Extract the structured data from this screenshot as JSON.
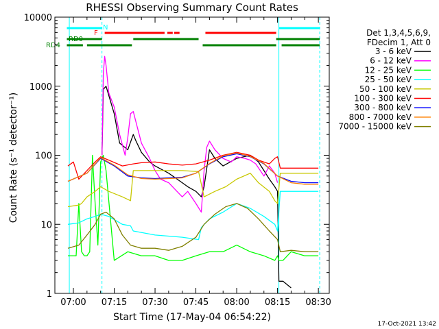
{
  "chart_data": {
    "type": "line",
    "title": "RHESSI Observing Summary Count Rates",
    "xlabel": "Start Time (17-May-04 06:54:22)",
    "ylabel": "Count Rate (s⁻¹ detector⁻¹)",
    "y_scale": "log",
    "ylim": [
      1,
      10000
    ],
    "xlim_minutes": [
      -2.4,
      37.3
    ],
    "x_ticks": [
      "07:00",
      "07:15",
      "07:30",
      "07:45",
      "08:00",
      "08:15",
      "08:30"
    ],
    "x_tick_minutes": [
      0,
      15,
      30,
      45,
      60,
      75,
      90
    ],
    "y_ticks": [
      "1",
      "10",
      "100",
      "1000",
      "10000"
    ],
    "y_tick_values": [
      1,
      10,
      100,
      1000,
      10000
    ],
    "legend_header": [
      "Det 1,3,4,5,6,9,",
      "FDecim 1, Att 0"
    ],
    "legend_position": "right",
    "footer": "17-Oct-2021 13:42",
    "flag_labels": {
      "N": "N",
      "F": "F",
      "RD0": "RD0",
      "RD4": "RD4"
    },
    "flag_bars": [
      {
        "name": "N",
        "color": "#00ffff",
        "row": 0,
        "segments": [
          [
            -2.4,
            10.5
          ],
          [
            75.5,
            90.5
          ]
        ]
      },
      {
        "name": "F",
        "color": "#ff0000",
        "row": 1,
        "segments": [
          [
            11.5,
            33.5
          ],
          [
            34.5,
            36.5
          ],
          [
            37.0,
            39.0
          ],
          [
            48.5,
            74.5
          ]
        ]
      },
      {
        "name": "RD0",
        "color": "#008000",
        "row": 2,
        "segments": [
          [
            -2.4,
            10.5
          ],
          [
            22.0,
            46.0
          ],
          [
            74.5,
            90.5
          ]
        ]
      },
      {
        "name": "RD4",
        "color": "#008000",
        "row": 3,
        "segments": [
          [
            -2.4,
            3.5
          ],
          [
            5.0,
            21.5
          ],
          [
            47.5,
            74.5
          ],
          [
            76.5,
            90.5
          ]
        ]
      }
    ],
    "vlines": [
      {
        "x": -1.5,
        "color": "#00ffff",
        "style": "solid"
      },
      {
        "x": 10.5,
        "color": "#00ffff",
        "style": "dashed"
      },
      {
        "x": 75.5,
        "color": "#00ffff",
        "style": "solid"
      },
      {
        "x": 90.5,
        "color": "#00ffff",
        "style": "dashed"
      }
    ],
    "series": [
      {
        "name": "3 - 6 keV",
        "color": "#000000",
        "x": [
          -2,
          8,
          10,
          10.5,
          11,
          12,
          15,
          17,
          20,
          22,
          23,
          25,
          28,
          30,
          35,
          40,
          42,
          45,
          47,
          48,
          50,
          52,
          55,
          60,
          65,
          68,
          70,
          72,
          74,
          75,
          75.5,
          77,
          80,
          85,
          90
        ],
        "y": [
          null,
          null,
          null,
          100,
          900,
          1000,
          400,
          150,
          120,
          200,
          160,
          110,
          80,
          70,
          55,
          40,
          35,
          30,
          25,
          35,
          120,
          90,
          70,
          90,
          100,
          80,
          60,
          45,
          35,
          30,
          1.5,
          1.5,
          1.2,
          null,
          null
        ]
      },
      {
        "name": "6 - 12 keV",
        "color": "#ff00ff",
        "x": [
          -2,
          10.5,
          11,
          11.5,
          12,
          13,
          15,
          17,
          19,
          20,
          21,
          22,
          23,
          25,
          28,
          30,
          32,
          35,
          40,
          42,
          45,
          47,
          48,
          49,
          50,
          52,
          55,
          58,
          60,
          63,
          65,
          67,
          70,
          72,
          74,
          75
        ],
        "y": [
          null,
          100,
          1500,
          2700,
          2000,
          800,
          500,
          200,
          100,
          180,
          400,
          430,
          300,
          150,
          90,
          60,
          45,
          40,
          25,
          30,
          20,
          15,
          60,
          130,
          160,
          120,
          90,
          80,
          95,
          90,
          85,
          75,
          50,
          70,
          55,
          40
        ]
      },
      {
        "name": "12 - 25 keV",
        "color": "#00ff00",
        "x": [
          -2,
          1,
          2,
          3,
          4,
          5,
          6,
          7,
          8,
          9,
          10,
          11,
          12,
          15,
          20,
          25,
          30,
          35,
          40,
          45,
          50,
          55,
          60,
          65,
          70,
          74,
          75,
          75.5,
          77,
          80,
          85,
          90
        ],
        "y": [
          3.5,
          3.5,
          20,
          4,
          3.5,
          3.5,
          4,
          100,
          20,
          5,
          80,
          100,
          60,
          3,
          4,
          3.5,
          3.5,
          3,
          3,
          3.5,
          4,
          4,
          5,
          4,
          3.5,
          3,
          3.5,
          3,
          3,
          4,
          3.5,
          3.5
        ]
      },
      {
        "name": "25 - 50 keV",
        "color": "#00ffff",
        "x": [
          -2,
          2,
          5,
          8,
          10,
          13,
          18,
          21,
          22,
          30,
          40,
          46,
          47,
          50,
          55,
          60,
          65,
          70,
          74,
          75,
          76,
          80,
          85,
          90
        ],
        "y": [
          10,
          10.5,
          12,
          13,
          14,
          13,
          10,
          9.5,
          8,
          7,
          6.5,
          6,
          9,
          12,
          15,
          20,
          17,
          13,
          10,
          8,
          30,
          30,
          30,
          30
        ]
      },
      {
        "name": "50 - 100 keV",
        "color": "#c8c800",
        "x": [
          -2,
          2,
          3,
          5,
          8,
          10,
          13,
          18,
          21,
          22,
          30,
          40,
          46,
          48,
          52,
          56,
          60,
          65,
          68,
          72,
          74,
          75,
          76,
          80,
          85,
          90
        ],
        "y": [
          18,
          19,
          20,
          25,
          30,
          35,
          30,
          25,
          22,
          60,
          60,
          60,
          58,
          25,
          30,
          35,
          45,
          55,
          40,
          30,
          22,
          20,
          55,
          55,
          55,
          55
        ]
      },
      {
        "name": "100 - 300 keV",
        "color": "#ff0000",
        "x": [
          -2,
          0,
          2,
          5,
          8,
          10,
          13,
          18,
          22,
          25,
          30,
          35,
          40,
          45,
          50,
          55,
          60,
          65,
          68,
          72,
          74,
          75,
          76,
          80,
          85,
          90
        ],
        "y": [
          70,
          80,
          45,
          60,
          80,
          95,
          85,
          70,
          75,
          78,
          80,
          75,
          72,
          75,
          85,
          100,
          110,
          100,
          85,
          75,
          90,
          95,
          65,
          65,
          65,
          65
        ]
      },
      {
        "name": "300 - 800 keV",
        "color": "#0000ff",
        "x": [
          -2,
          5,
          10,
          15,
          20,
          25,
          30,
          35,
          40,
          45,
          50,
          55,
          60,
          65,
          70,
          75,
          80,
          85,
          90
        ],
        "y": [
          42,
          55,
          90,
          70,
          50,
          47,
          46,
          47,
          48,
          55,
          75,
          95,
          105,
          95,
          75,
          50,
          42,
          40,
          40
        ]
      },
      {
        "name": "800 - 7000 keV",
        "color": "#ff8000",
        "x": [
          -2,
          5,
          10,
          15,
          20,
          25,
          30,
          35,
          40,
          45,
          50,
          55,
          60,
          65,
          70,
          75,
          80,
          85,
          90
        ],
        "y": [
          42,
          55,
          92,
          72,
          52,
          46,
          45,
          46,
          47,
          55,
          76,
          98,
          108,
          96,
          76,
          50,
          40,
          38,
          38
        ]
      },
      {
        "name": "7000 - 15000 keV",
        "color": "#808000",
        "x": [
          -2,
          2,
          5,
          8,
          10,
          12,
          15,
          18,
          21,
          25,
          30,
          35,
          40,
          45,
          48,
          52,
          56,
          60,
          64,
          68,
          72,
          75,
          76,
          80,
          85,
          90
        ],
        "y": [
          4.5,
          5,
          7,
          10,
          14,
          15,
          12,
          7,
          5,
          4.5,
          4.5,
          4.2,
          4.8,
          6.5,
          10,
          14,
          18,
          20,
          17,
          12,
          8,
          6,
          4,
          4.2,
          4,
          4
        ]
      }
    ]
  }
}
